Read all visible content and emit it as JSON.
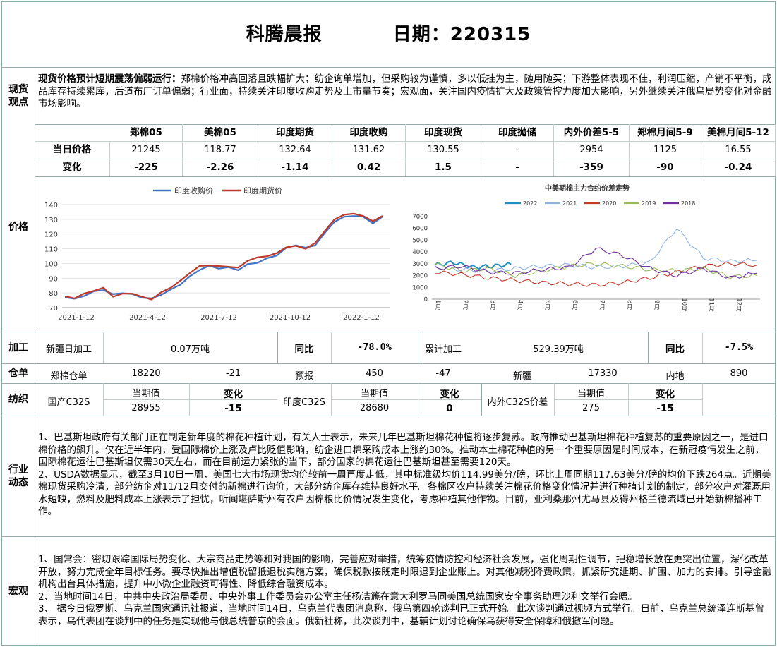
{
  "title": {
    "brand": "科腾晨报",
    "date_label": "日期：220315"
  },
  "spot": {
    "label": "现货\n观点",
    "lead": "现货价格预计短期震荡偏弱运行：",
    "text": "郑棉价格冲高回落且跌幅扩大；纺企询单增加，但采购较为谨慎，多以低挂为主，随用随买；下游整体表现不佳，利润压缩，产销不平衡，成品库存持续累库，后道布厂订单偏弱；行业面，持续关注印度收购走势及上市量节奏；宏观面，关注国内疫情扩大及政策管控力度加大影响，另外继续关注俄乌局势变化对金融市场影响。"
  },
  "price": {
    "label": "价格",
    "columns": [
      "郑棉05",
      "美棉05",
      "印度期货",
      "印度收购",
      "印度现货",
      "印度抛储",
      "内外价差5-5",
      "郑棉月间5-9",
      "美棉月间5-12"
    ],
    "rows": [
      {
        "name": "当日价格",
        "values": [
          "21245",
          "118.77",
          "132.64",
          "131.62",
          "130.55",
          "-",
          "2954",
          "1125",
          "16.55"
        ]
      },
      {
        "name": "变化",
        "values": [
          "-225",
          "-2.26",
          "-1.14",
          "0.42",
          "1.5",
          "-",
          "-359",
          "-90",
          "-0.24"
        ]
      }
    ]
  },
  "chart_data": [
    {
      "type": "line",
      "title": "",
      "legend": [
        "印度收购价",
        "印度期货价"
      ],
      "x_ticks": [
        "2021-1-12",
        "2021-4-12",
        "2021-7-12",
        "2021-10-12",
        "2022-1-12"
      ],
      "ylim": [
        70,
        140
      ],
      "y_ticks": [
        "70",
        "80",
        "90",
        "100",
        "110",
        "120",
        "130",
        "140"
      ],
      "colors": [
        "#4472c4",
        "#c0392b"
      ],
      "series": [
        {
          "name": "印度收购价",
          "values": [
            77,
            76,
            78,
            81,
            82,
            79,
            80,
            79,
            77,
            76,
            79,
            82,
            86,
            91,
            96,
            98,
            97,
            97,
            96,
            99,
            101,
            103,
            106,
            110,
            113,
            110,
            113,
            120,
            129,
            131,
            133,
            131,
            128,
            131
          ]
        },
        {
          "name": "印度期货价",
          "values": [
            77,
            77,
            79,
            82,
            83,
            78,
            79,
            80,
            77,
            76,
            80,
            84,
            88,
            94,
            98,
            99,
            98,
            98,
            97,
            102,
            104,
            105,
            107,
            111,
            112,
            110,
            114,
            122,
            130,
            133,
            134,
            132,
            129,
            132
          ]
        }
      ]
    },
    {
      "type": "line",
      "title": "中美期棉主力合约价差走势",
      "legend": [
        "2022",
        "2021",
        "2020",
        "2019",
        "2018"
      ],
      "colors": [
        "#1f8fbf",
        "#8fb4e3",
        "#c0392b",
        "#9bbb59",
        "#7030a0"
      ],
      "ylim": [
        0,
        7000
      ],
      "y_ticks": [
        "0",
        "1000",
        "2000",
        "3000",
        "4000",
        "5000",
        "6000",
        "7000"
      ],
      "x_ticks": [
        "1月",
        "2月",
        "3月",
        "4月",
        "5月",
        "6月",
        "7月",
        "8月",
        "9月",
        "10月",
        "11月",
        "12月"
      ],
      "series": [
        {
          "name": "2022",
          "values": [
            2900,
            3100,
            2700,
            2800,
            2950
          ]
        },
        {
          "name": "2021",
          "values": [
            2700,
            2500,
            2400,
            2600,
            2800,
            2900,
            2700,
            2800,
            3100,
            6000,
            3500,
            3200,
            3300
          ]
        },
        {
          "name": "2020",
          "values": [
            2300,
            2100,
            1800,
            1600,
            1400,
            1300,
            1200,
            1400,
            1800,
            2300,
            2800,
            3000,
            2900
          ]
        },
        {
          "name": "2019",
          "values": [
            3000,
            2400,
            2600,
            2000,
            2400,
            2800,
            3000,
            2800,
            2500,
            2400,
            2600,
            1900,
            2000
          ]
        },
        {
          "name": "2018",
          "values": [
            2600,
            2800,
            2300,
            2200,
            2500,
            2700,
            4300,
            3700,
            2600,
            2000,
            2600,
            1800,
            2200
          ]
        }
      ]
    }
  ],
  "processing": {
    "label": "加工",
    "xj_label": "新疆日加工",
    "xj_value": "0.07万吨",
    "yoy_label": "同比",
    "yoy_value": "-78.0%",
    "cum_label": "累计加工",
    "cum_value": "529.39万吨",
    "yoy2_label": "同比",
    "yoy2_value": "-7.5%"
  },
  "warehouse": {
    "label": "仓单",
    "c1": "郑棉仓单",
    "c2": "18220",
    "c3": "-21",
    "c4": "预报",
    "c5": "450",
    "c6": "-47",
    "c7": "新疆",
    "c8": "17330",
    "c9": "内地",
    "c10": "890"
  },
  "textile": {
    "label": "纺织",
    "dom_label": "国产C32S",
    "cur_label": "当期值",
    "chg_label": "变化",
    "dom_value": "28955",
    "dom_change": "-15",
    "ind_label": "印度C32S",
    "ind_value": "28680",
    "ind_change": "0",
    "spread_label": "内外C32S价差",
    "spread_value": "275",
    "spread_change": "-15"
  },
  "industry": {
    "label": "行业\n动态",
    "p1": "1、巴基斯坦政府有关部门正在制定新年度的棉花种植计划，有关人士表示，未来几年巴基斯坦棉花种植将逐步复苏。政府推动巴基斯坦棉花种植复苏的重要原因之一，是进口棉价格的飙升。仅在近半年内，受国际棉价上涨及卢比贬值影响，纺企进口棉采购成本上涨约30%。推动本土棉花种植的另一个重要原因是时间成本，在新冠疫情发生之前，国际棉花运往巴基斯坦仅需30天左右，而在目前运力紧张的当下，部分国家的棉花运往巴基斯坦甚至需要120天。",
    "p2": "2、USDA数据显示，截至3月10日一周，美国七大市场现货均价较前一周再度走低，其中标准级均价114.99美分/磅，环比上周同期117.63美分/磅的均价下跌264点。近期美棉现货采购冷清，部分纺企对11/12月交付的新棉进行询价，大部分纺企库存维持良好水平。各棉区农户持续关注棉花价格变化情况并进行种植计划的制定，部分农户对灌溉用水短缺，燃料及肥料成本上涨表示了担忧，听闻堪萨斯州有农户因棉粮比价情况发生变化，考虑种植其他作物。目前，亚利桑那州尤马县及得州格兰德流域已开始新棉播种工作。"
  },
  "macro": {
    "label": "宏观",
    "p1": "1、国常会：密切跟踪国际局势变化、大宗商品走势等和对我国的影响，完善应对举措，统筹疫情防控和经济社会发展，强化周期性调节，把稳增长放在更突出位置，深化改革开放，努力完成全年目标任务。要尽快推出增值税留抵退税实施方案，确保税款按既定时限退到企业账上。对其他减税降费政策，抓紧研究延期、扩围、加力的安排。引导金融机构出台具体措施，提升中小微企业融资可得性、降低综合融资成本。",
    "p2": "2、当地时间14日，中共中央政治局委员、中央外事工作委员会办公室主任杨洁篪在意大利罗马同美国总统国家安全事务助理沙利文举行会晤。",
    "p3": "3、 据今日俄罗斯、乌克兰国家通讯社报道，当地时间14日，乌克兰代表团消息称，俄乌第四轮谈判已正式开始。此次谈判通过视频方式举行。日前，乌克兰总统泽连斯基曾表示，乌代表团在谈判中的任务是实现他与俄总统普京的会面。俄新社称，此次谈判中，基辅计划讨论确保乌获得安全保障和俄撤军问题。"
  }
}
